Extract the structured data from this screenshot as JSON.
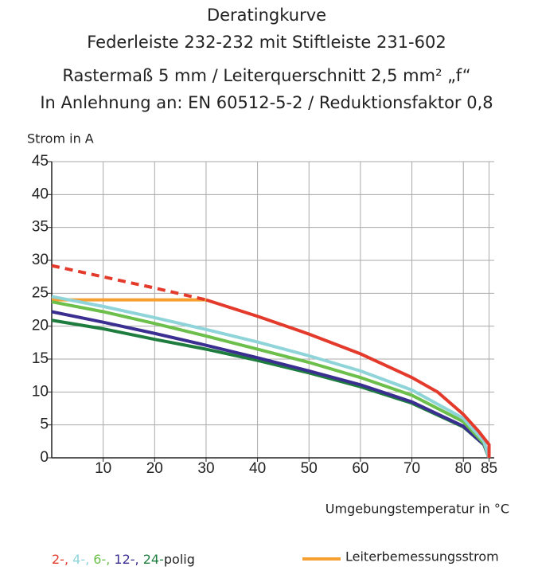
{
  "chart_data": {
    "type": "line",
    "title": [
      "Deratingkurve",
      "Federleiste 232-232 mit Stiftleiste 231-602",
      "Rastermaß 5 mm / Leiterquerschnitt 2,5 mm² „f“",
      "In Anlehnung an: EN 60512-5-2 / Reduktionsfaktor 0,8"
    ],
    "y_label": "Strom in A",
    "x_label": "Umgebungstemperatur in °C",
    "xlim": [
      0,
      86
    ],
    "xticks": [
      10,
      20,
      30,
      40,
      50,
      60,
      70,
      80,
      85
    ],
    "ylim": [
      0,
      45
    ],
    "yticks": [
      0,
      5,
      10,
      15,
      20,
      25,
      30,
      35,
      40,
      45
    ],
    "grid": true,
    "legend_suffix": "polig",
    "series": [
      {
        "name": "2-,",
        "color": "#e33a2b",
        "dashed_below_x": 30,
        "x": [
          0,
          10,
          20,
          30,
          40,
          50,
          60,
          70,
          75,
          80,
          83,
          85,
          85
        ],
        "values": [
          29.2,
          27.5,
          25.8,
          24.0,
          21.5,
          18.8,
          15.8,
          12.2,
          10.0,
          6.6,
          4.0,
          2.0,
          0
        ]
      },
      {
        "name": "4-,",
        "color": "#8fd4d8",
        "x": [
          0,
          10,
          20,
          30,
          40,
          50,
          60,
          70,
          80,
          84,
          85
        ],
        "values": [
          24.5,
          23.0,
          21.3,
          19.5,
          17.6,
          15.5,
          13.2,
          10.3,
          6.0,
          2.5,
          0
        ]
      },
      {
        "name": "6-,",
        "color": "#6cbf4a",
        "x": [
          0,
          10,
          20,
          30,
          40,
          50,
          60,
          70,
          80,
          84,
          85
        ],
        "values": [
          23.7,
          22.2,
          20.4,
          18.5,
          16.5,
          14.5,
          12.2,
          9.5,
          5.5,
          2.2,
          0
        ]
      },
      {
        "name": "12-,",
        "color": "#3a2f90",
        "x": [
          0,
          10,
          20,
          30,
          40,
          50,
          60,
          70,
          80,
          84,
          85
        ],
        "values": [
          22.2,
          20.6,
          18.9,
          17.1,
          15.2,
          13.2,
          11.1,
          8.5,
          4.8,
          2.0,
          0
        ]
      },
      {
        "name": "24-",
        "color": "#1e7d3e",
        "x": [
          0,
          10,
          20,
          30,
          40,
          50,
          60,
          70,
          80,
          84,
          85
        ],
        "values": [
          20.9,
          19.6,
          18.0,
          16.5,
          14.8,
          12.9,
          10.8,
          8.3,
          4.7,
          2.0,
          0
        ]
      }
    ],
    "reference_line": {
      "name": "Leiterbemessungsstrom",
      "color": "#f5a030",
      "x": [
        0,
        30
      ],
      "values": [
        24,
        24
      ]
    }
  }
}
